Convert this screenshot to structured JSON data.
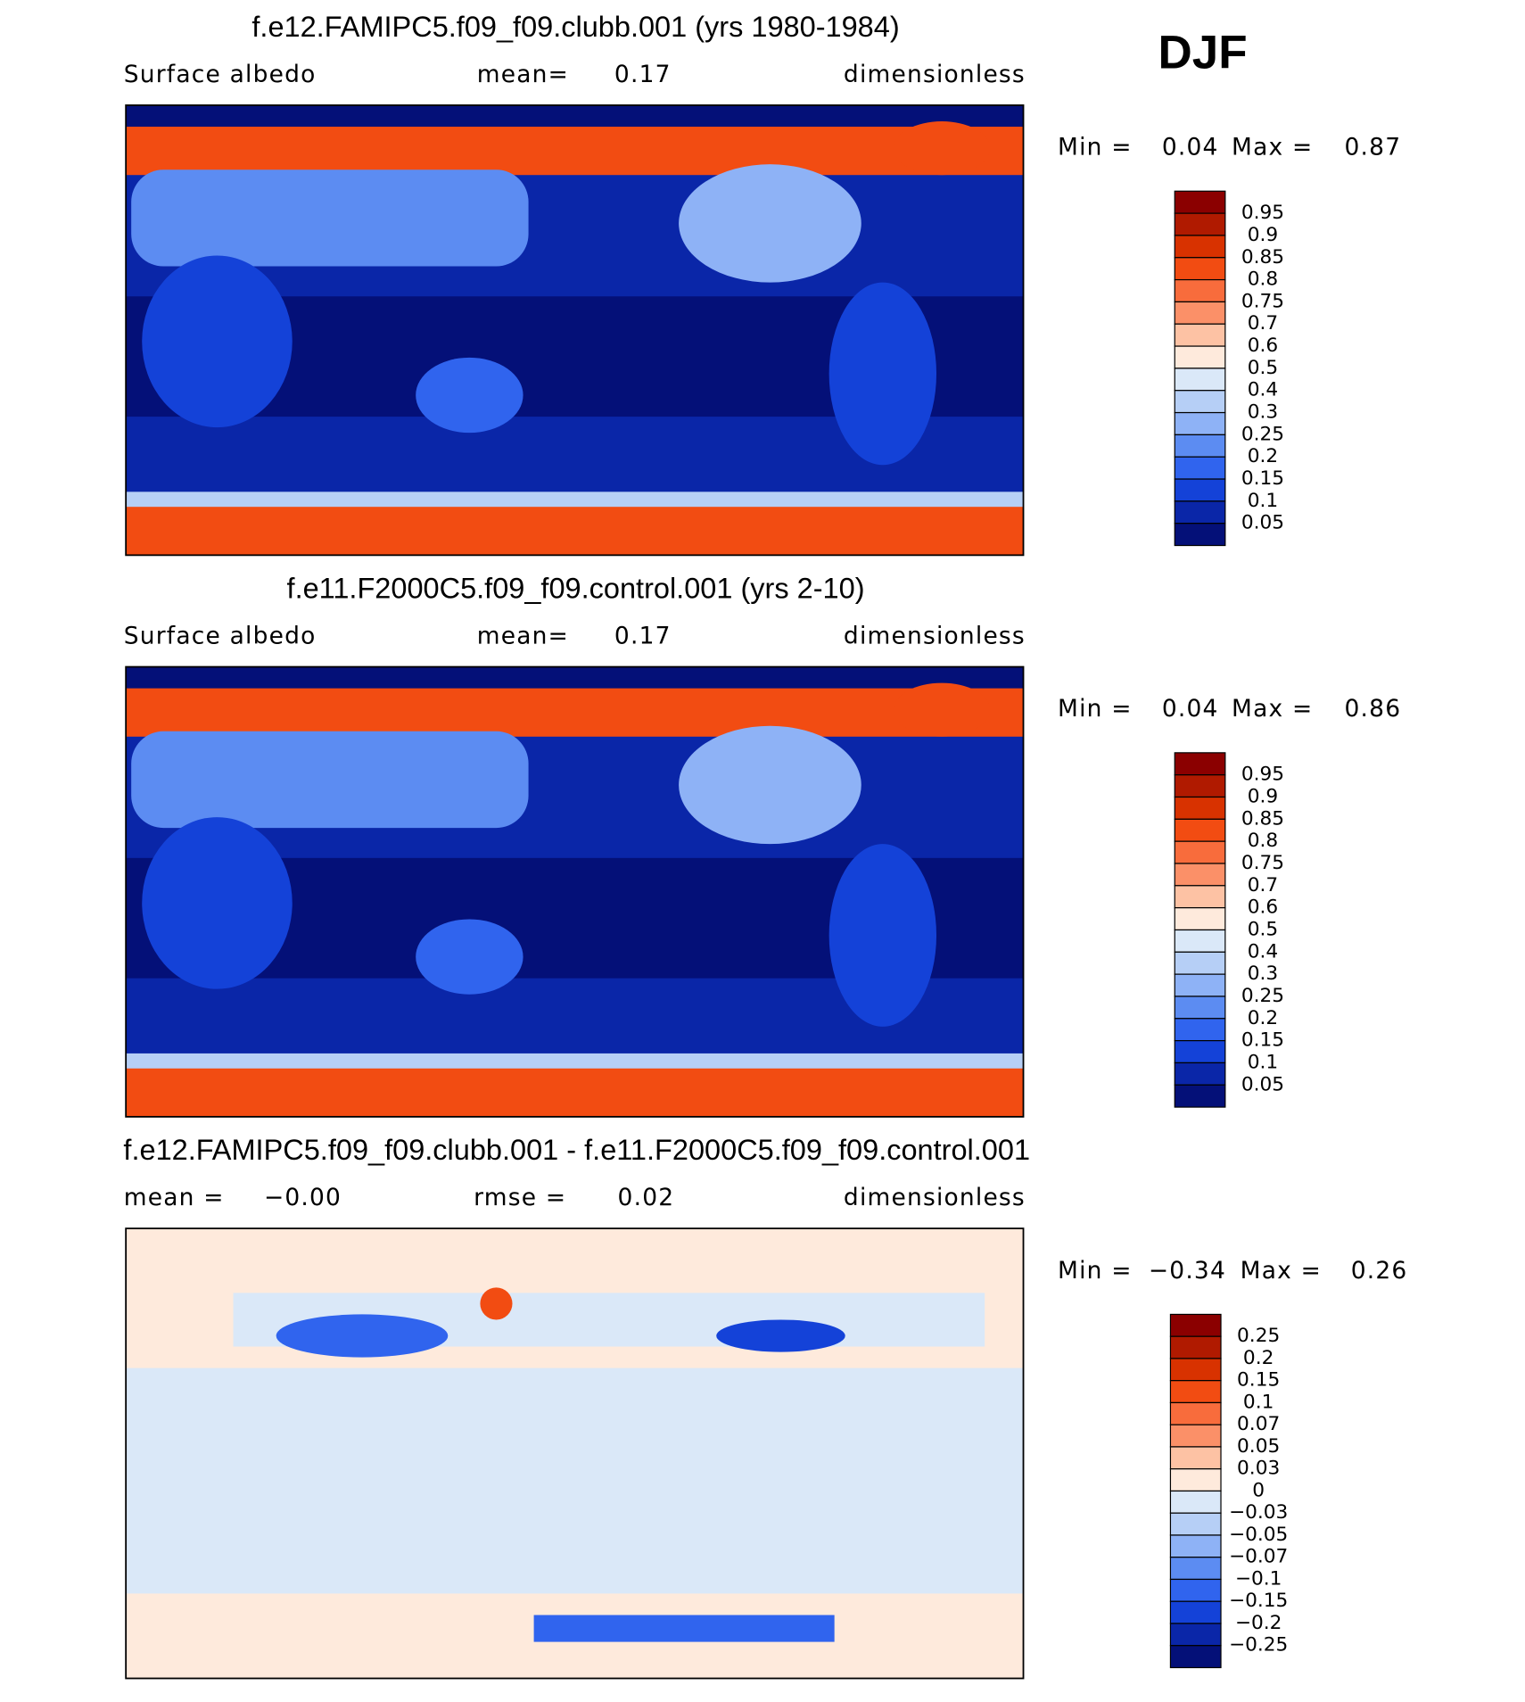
{
  "header": {
    "season": "DJF"
  },
  "colors": [
    "#8b0000",
    "#b01a00",
    "#d83200",
    "#f24c12",
    "#f86c3c",
    "#fb9068",
    "#fdc2a4",
    "#feeadc",
    "#dae8f8",
    "#b6cff6",
    "#8eb2f6",
    "#5c8cf2",
    "#3064ee",
    "#1442d8",
    "#0a26a8",
    "#041078"
  ],
  "panels": [
    {
      "title": "f.e12.FAMIPC5.f09_f09.clubb.001 (yrs 1980-1984)",
      "left": "Surface albedo",
      "center_label": "mean=",
      "center_value": "0.17",
      "right": "dimensionless",
      "min_label": "Min =",
      "min_value": "0.04",
      "max_label": "Max =",
      "max_value": "0.87",
      "colorbar": [
        "0.95",
        "0.9",
        "0.85",
        "0.8",
        "0.75",
        "0.7",
        "0.6",
        "0.5",
        "0.4",
        "0.3",
        "0.25",
        "0.2",
        "0.15",
        "0.1",
        "0.05"
      ]
    },
    {
      "title": "f.e11.F2000C5.f09_f09.control.001 (yrs 2-10)",
      "left": "Surface albedo",
      "center_label": "mean=",
      "center_value": "0.17",
      "right": "dimensionless",
      "min_label": "Min =",
      "min_value": "0.04",
      "max_label": "Max =",
      "max_value": "0.86",
      "colorbar": [
        "0.95",
        "0.9",
        "0.85",
        "0.8",
        "0.75",
        "0.7",
        "0.6",
        "0.5",
        "0.4",
        "0.3",
        "0.25",
        "0.2",
        "0.15",
        "0.1",
        "0.05"
      ]
    },
    {
      "title": "f.e12.FAMIPC5.f09_f09.clubb.001 - f.e11.F2000C5.f09_f09.control.001",
      "left": "mean =",
      "left_value": "−0.00",
      "center_label": "rmse =",
      "center_value": "0.02",
      "right": "dimensionless",
      "min_label": "Min =",
      "min_value": "−0.34",
      "max_label": "Max =",
      "max_value": "0.26",
      "colorbar": [
        "0.25",
        "0.2",
        "0.15",
        "0.1",
        "0.07",
        "0.05",
        "0.03",
        "0",
        "−0.03",
        "−0.05",
        "−0.07",
        "−0.1",
        "−0.15",
        "−0.2",
        "−0.25"
      ]
    }
  ]
}
